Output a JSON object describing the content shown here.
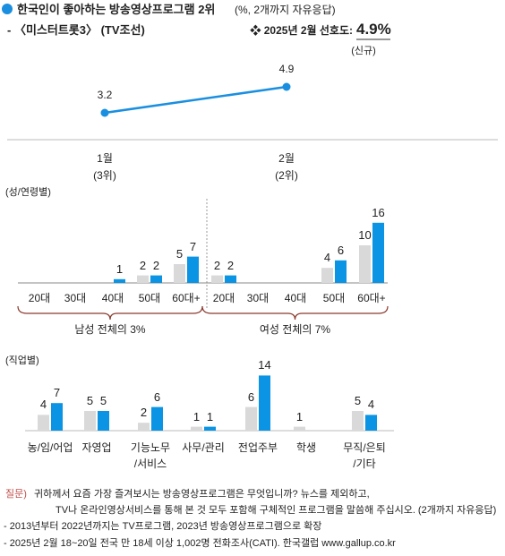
{
  "header": {
    "title": "한국인이 좋아하는 방송영상프로그램 2위",
    "subtitle": "(%, 2개까지 자유응답)",
    "program": "- 〈미스터트롯3〉 (TV조선)",
    "rating_label": "❖ 2025년 2월 선호도:",
    "rating": "4.9%",
    "status": "(신규)"
  },
  "chart_data": [
    {
      "type": "line",
      "categories": [
        "1월",
        "2월"
      ],
      "ranks": [
        "(3위)",
        "(2위)"
      ],
      "values": [
        3.2,
        4.9
      ],
      "color": "#1a8fe0"
    },
    {
      "type": "bar",
      "title": "(성/연령별)",
      "categories": [
        "20대",
        "30대",
        "40대",
        "50대",
        "60대+",
        "20대",
        "30대",
        "40대",
        "50대",
        "60대+"
      ],
      "group_labels": [
        "남성 전체의 3%",
        "여성 전체의 7%"
      ],
      "series": [
        {
          "color": "#d9d9d9",
          "values": [
            null,
            null,
            null,
            2,
            5,
            2,
            null,
            null,
            4,
            10
          ]
        },
        {
          "color": "#0a94e3",
          "values": [
            null,
            null,
            1,
            2,
            7,
            2,
            null,
            null,
            6,
            16
          ]
        }
      ]
    },
    {
      "type": "bar",
      "title": "(직업별)",
      "categories": [
        "농/임/어업",
        "자영업",
        "기능노무\n/서비스",
        "사무/관리",
        "전업주부",
        "학생",
        "무직/은퇴\n/기타"
      ],
      "series": [
        {
          "color": "#d9d9d9",
          "values": [
            4,
            5,
            2,
            1,
            6,
            1,
            5
          ]
        },
        {
          "color": "#0a94e3",
          "values": [
            7,
            5,
            6,
            1,
            14,
            null,
            4
          ]
        }
      ]
    }
  ],
  "footer": {
    "question_label": "질문)",
    "question": [
      "귀하께서 요즘 가장 즐겨보시는 방송영상프로그램은 무엇입니까? 뉴스를 제외하고,",
      "TV나 온라인영상서비스를 통해 본 것 모두 포함해 구체적인 프로그램을 말씀해 주십시오. (2개까지 자유응답)"
    ],
    "notes": [
      "- 2013년부터 2022년까지는 TV프로그램, 2023년 방송영상프로그램으로 확장",
      "- 2025년 2월 18~20일 전국 만 18세 이상 1,002명 전화조사(CATI). 한국갤럽 www.gallup.co.kr"
    ]
  }
}
